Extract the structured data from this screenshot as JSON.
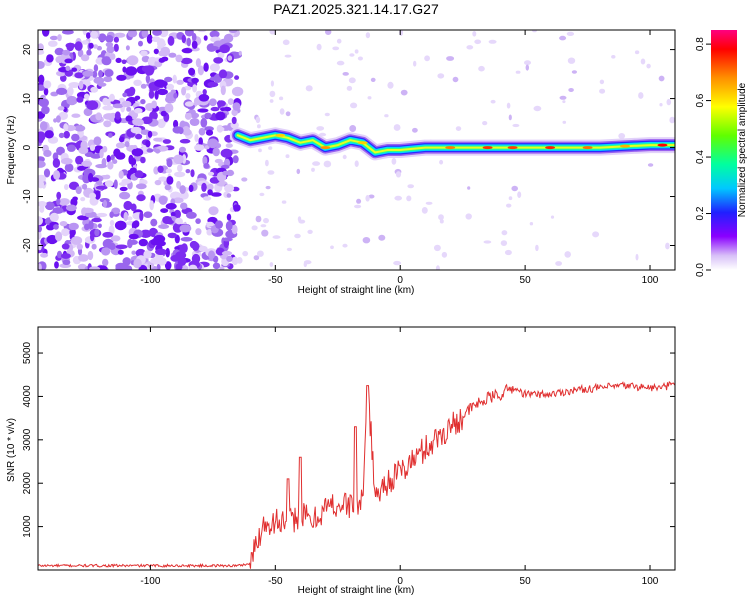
{
  "title": "PAZ1.2025.321.14.17.G27",
  "colors": {
    "snr_line": "#e03030",
    "axis": "#000000",
    "background": "#ffffff"
  },
  "chart_data": [
    {
      "type": "heatmap",
      "name": "spectrogram",
      "xlabel": "Height of straight line (km)",
      "ylabel": "Frequency (Hz)",
      "xlim": [
        -145,
        110
      ],
      "ylim": [
        -25,
        24
      ],
      "x_ticks": [
        -100,
        -50,
        0,
        50,
        100
      ],
      "y_ticks": [
        -20,
        -10,
        0,
        10,
        20
      ],
      "x_tick_labels": [
        "-100",
        "-50",
        "0",
        "50",
        "100"
      ],
      "y_tick_labels": [
        "-20",
        "-10",
        "0",
        "10",
        "20"
      ],
      "noise_region_end_km": -65,
      "signal_trace": [
        {
          "x": -65,
          "y": 2.5
        },
        {
          "x": -60,
          "y": 1.5
        },
        {
          "x": -55,
          "y": 2.0
        },
        {
          "x": -50,
          "y": 2.5
        },
        {
          "x": -45,
          "y": 2.0
        },
        {
          "x": -40,
          "y": 1.0
        },
        {
          "x": -35,
          "y": 1.5
        },
        {
          "x": -30,
          "y": 0.0
        },
        {
          "x": -25,
          "y": 0.5
        },
        {
          "x": -20,
          "y": 1.5
        },
        {
          "x": -15,
          "y": 1.0
        },
        {
          "x": -10,
          "y": -1.0
        },
        {
          "x": -5,
          "y": -0.5
        },
        {
          "x": 0,
          "y": -0.5
        },
        {
          "x": 10,
          "y": 0.0
        },
        {
          "x": 20,
          "y": 0.0
        },
        {
          "x": 40,
          "y": 0.0
        },
        {
          "x": 60,
          "y": 0.0
        },
        {
          "x": 80,
          "y": 0.0
        },
        {
          "x": 100,
          "y": 0.5
        },
        {
          "x": 110,
          "y": 0.5
        }
      ],
      "colorbar": {
        "label": "Normalized spectral amplitude",
        "range": [
          0.0,
          0.85
        ],
        "ticks": [
          0.0,
          0.2,
          0.4,
          0.6,
          0.8
        ],
        "tick_labels": [
          "0.0",
          "0.2",
          "0.4",
          "0.6",
          "0.8"
        ]
      }
    },
    {
      "type": "line",
      "name": "snr",
      "xlabel": "Height of straight line (km)",
      "ylabel": "SNR (10 * v/v)",
      "xlim": [
        -145,
        110
      ],
      "ylim": [
        0,
        5600
      ],
      "x_ticks": [
        -100,
        -50,
        0,
        50,
        100
      ],
      "y_ticks": [
        1000,
        2000,
        3000,
        4000,
        5000
      ],
      "x_tick_labels": [
        "-100",
        "-50",
        "0",
        "50",
        "100"
      ],
      "y_tick_labels": [
        "1000",
        "2000",
        "3000",
        "4000",
        "5000"
      ],
      "series": [
        {
          "name": "SNR",
          "x": [
            -145,
            -120,
            -100,
            -80,
            -65,
            -60,
            -57,
            -55,
            -50,
            -45,
            -40,
            -35,
            -30,
            -25,
            -20,
            -15,
            -13,
            -10,
            -5,
            0,
            10,
            20,
            25,
            30,
            35,
            40,
            45,
            50,
            60,
            70,
            80,
            90,
            100,
            105,
            110
          ],
          "y": [
            100,
            100,
            100,
            100,
            100,
            150,
            700,
            1050,
            1150,
            1050,
            1300,
            1100,
            1450,
            1500,
            1500,
            1550,
            4250,
            1700,
            2050,
            2250,
            2800,
            3300,
            3550,
            3800,
            3950,
            4050,
            4200,
            4050,
            4050,
            4150,
            4200,
            4250,
            4200,
            4200,
            4300
          ]
        }
      ],
      "spikes": [
        {
          "x": -13,
          "y": 4250
        },
        {
          "x": -18,
          "y": 3300
        },
        {
          "x": -40,
          "y": 2600
        },
        {
          "x": -45,
          "y": 2100
        }
      ]
    }
  ]
}
